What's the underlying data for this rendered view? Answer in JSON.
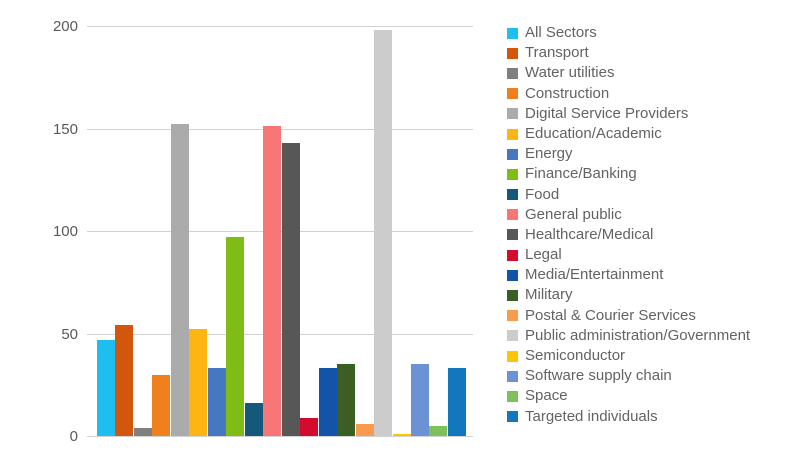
{
  "chart_data": {
    "type": "bar",
    "title": "",
    "xlabel": "",
    "ylabel": "",
    "ylim": [
      0,
      200
    ],
    "yticks": [
      0,
      50,
      100,
      150,
      200
    ],
    "grid": true,
    "legend_position": "right",
    "categories": [
      "All Sectors",
      "Transport",
      "Water utilities",
      "Construction",
      "Digital Service Providers",
      "Education/Academic",
      "Energy",
      "Finance/Banking",
      "Food",
      "General public",
      "Healthcare/Medical",
      "Legal",
      "Media/Entertainment",
      "Military",
      "Postal & Courier Services",
      "Public administration/Government",
      "Semiconductor",
      "Software supply chain",
      "Space",
      "Targeted individuals"
    ],
    "values": [
      47,
      54,
      4,
      30,
      152,
      52,
      33,
      97,
      16,
      151,
      143,
      9,
      33,
      35,
      6,
      198,
      1,
      35,
      5,
      33
    ],
    "colors": [
      "#1fbef0",
      "#d2570c",
      "#7f7f7f",
      "#f0801e",
      "#ababab",
      "#fdb513",
      "#4678c2",
      "#7fbc15",
      "#14587a",
      "#f97676",
      "#575757",
      "#d40a2e",
      "#1353a8",
      "#3a5e23",
      "#f89b4d",
      "#cccccc",
      "#fdc500",
      "#6a92d4",
      "#7ec05c",
      "#1377be"
    ]
  },
  "style_colors": {
    "grid": "#d2d2d2",
    "axis_text": "#595959",
    "legend_text": "#636363",
    "background": "#ffffff"
  }
}
